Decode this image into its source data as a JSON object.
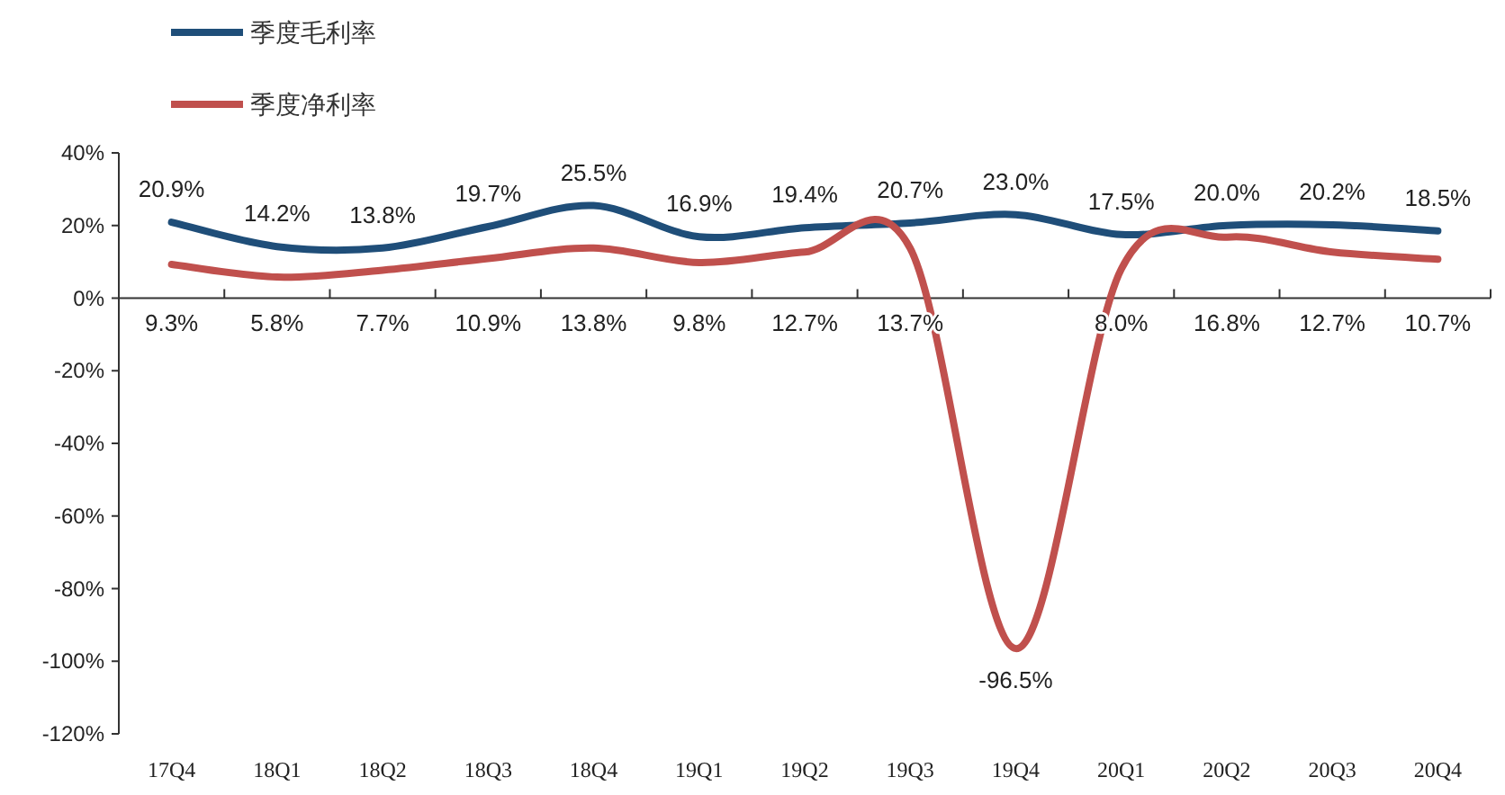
{
  "chart_data": {
    "type": "line",
    "categories": [
      "17Q4",
      "18Q1",
      "18Q2",
      "18Q3",
      "18Q4",
      "19Q1",
      "19Q2",
      "19Q3",
      "19Q4",
      "20Q1",
      "20Q2",
      "20Q3",
      "20Q4"
    ],
    "series": [
      {
        "name": "季度毛利率",
        "color": "#1f4e79",
        "values": [
          20.9,
          14.2,
          13.8,
          19.7,
          25.5,
          16.9,
          19.4,
          20.7,
          23.0,
          17.5,
          20.0,
          20.2,
          18.5
        ],
        "value_labels": [
          "20.9%",
          "14.2%",
          "13.8%",
          "19.7%",
          "25.5%",
          "16.9%",
          "19.4%",
          "20.7%",
          "23.0%",
          "17.5%",
          "20.0%",
          "20.2%",
          "18.5%"
        ]
      },
      {
        "name": "季度净利率",
        "color": "#c0504d",
        "values": [
          9.3,
          5.8,
          7.7,
          10.9,
          13.8,
          9.8,
          12.7,
          13.7,
          -96.5,
          8.0,
          16.8,
          12.7,
          10.7
        ],
        "value_labels": [
          "9.3%",
          "5.8%",
          "7.7%",
          "10.9%",
          "13.8%",
          "9.8%",
          "12.7%",
          "13.7%",
          "-96.5%",
          "8.0%",
          "16.8%",
          "12.7%",
          "10.7%"
        ]
      }
    ],
    "ylim": [
      -120,
      40
    ],
    "yticks": [
      {
        "value": -120,
        "label": "-120%"
      },
      {
        "value": -100,
        "label": "-100%"
      },
      {
        "value": -80,
        "label": "-80%"
      },
      {
        "value": -60,
        "label": "-60%"
      },
      {
        "value": -40,
        "label": "-40%"
      },
      {
        "value": -20,
        "label": "-20%"
      },
      {
        "value": 0,
        "label": "0%"
      },
      {
        "value": 20,
        "label": "20%"
      },
      {
        "value": 40,
        "label": "40%"
      }
    ],
    "legend": "top left"
  }
}
